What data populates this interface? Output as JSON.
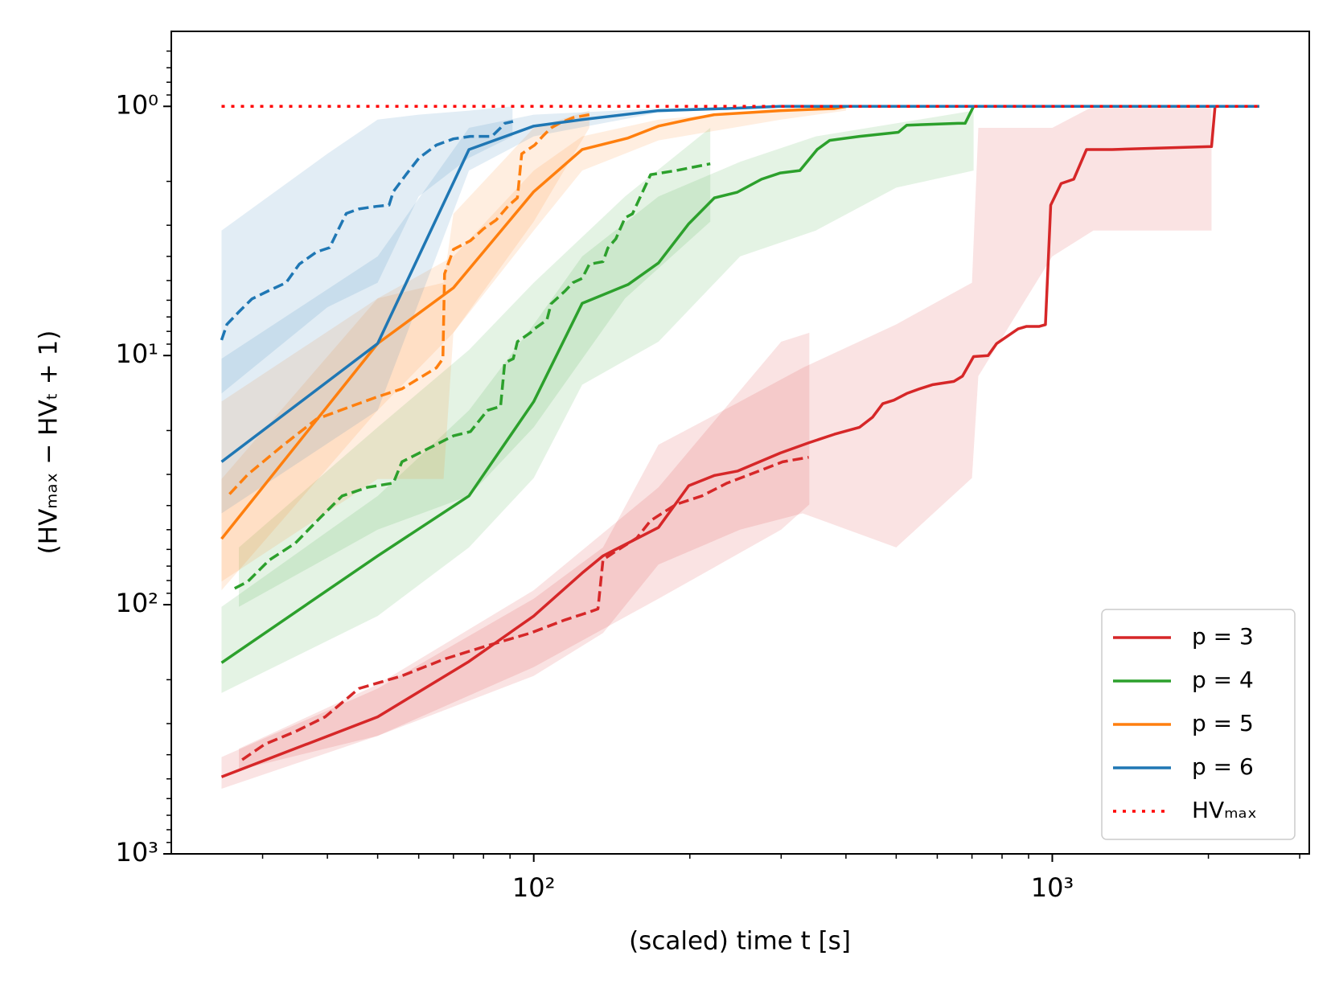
{
  "chart_data": {
    "type": "line",
    "xlabel": "(scaled) time t [s]",
    "ylabel": "(HVₘₐₓ − HVₜ + 1)",
    "xscale": "log",
    "yscale": "log",
    "invert_y": true,
    "xlim": [
      20,
      3130
    ],
    "ylim": [
      0.5,
      1000
    ],
    "xticks": [
      {
        "value": 100,
        "label": "10²"
      },
      {
        "value": 1000,
        "label": "10³"
      }
    ],
    "yticks": [
      {
        "value": 1,
        "label": "10⁰"
      },
      {
        "value": 10,
        "label": "10¹"
      },
      {
        "value": 100,
        "label": "10²"
      },
      {
        "value": 1000,
        "label": "10³"
      }
    ],
    "legend": "lower right",
    "series": [
      {
        "name": "p = 3",
        "color": "#d62728",
        "x": [
          25,
          50,
          75,
          100,
          124,
          136,
          174,
          199,
          223,
          247,
          299,
          339,
          380,
          425,
          450,
          471,
          495,
          524,
          555,
          587,
          646,
          671,
          705,
          752,
          781,
          859,
          892,
          944,
          970,
          993,
          1040,
          1100,
          1164,
          1305,
          2028,
          2060,
          2506
        ],
        "values": [
          491,
          282,
          169,
          111,
          74.6,
          63.7,
          49,
          33.3,
          30.3,
          29.1,
          24.6,
          22.4,
          20.7,
          19.4,
          17.7,
          15.6,
          15.1,
          14.2,
          13.6,
          13.1,
          12.7,
          12.1,
          10.1,
          10,
          8.95,
          7.82,
          7.64,
          7.64,
          7.52,
          2.49,
          2.04,
          1.96,
          1.49,
          1.49,
          1.45,
          1,
          1
        ],
        "band": {
          "x": [
            25,
            50,
            100,
            136,
            174,
            250,
            330,
            500,
            700,
            720,
            1000,
            1200,
            2028
          ],
          "min": [
            409,
            217,
            94.6,
            58.9,
            22.8,
            15.3,
            11.2,
            7.5,
            5.1,
            1.22,
            1.22,
            1,
            1
          ],
          "max": [
            548,
            336,
            193,
            130,
            69,
            50,
            43,
            58.9,
            31,
            12.1,
            4,
            3.15,
            3.15
          ]
        }
      },
      {
        "color": "#d62728",
        "dash": true,
        "x": [
          27.4,
          30.3,
          34.7,
          39.6,
          46,
          55.7,
          67.4,
          81.4,
          98.5,
          115,
          128,
          133,
          136,
          144,
          158,
          168,
          188,
          211,
          236,
          275,
          302,
          339
        ],
        "values": [
          419,
          363,
          323,
          282,
          217,
          193,
          165,
          146,
          130,
          115,
          107,
          104,
          66,
          61,
          54,
          46,
          39.6,
          36.6,
          32.5,
          28.8,
          26.7,
          25.6
        ],
        "band": {
          "x": [
            27,
            50,
            100,
            174,
            300,
            340
          ],
          "min": [
            378,
            209,
            87.5,
            33.8,
            8.8,
            8.1
          ],
          "max": [
            460,
            336,
            178,
            94.6,
            50,
            39.6
          ]
        }
      },
      {
        "name": "p = 4",
        "color": "#2ca02c",
        "x": [
          25,
          50,
          75,
          100,
          124,
          152,
          174,
          199,
          223,
          247,
          275,
          299,
          326,
          352,
          372,
          425,
          505,
          524,
          658,
          679,
          705,
          2506
        ],
        "values": [
          171,
          63.7,
          36.6,
          15.3,
          6.17,
          5.19,
          4.25,
          2.96,
          2.33,
          2.21,
          1.96,
          1.85,
          1.81,
          1.49,
          1.37,
          1.32,
          1.27,
          1.19,
          1.17,
          1.17,
          1,
          1
        ],
        "band": {
          "x": [
            25,
            50,
            75,
            100,
            124,
            174,
            250,
            350,
            500,
            705
          ],
          "min": [
            102,
            36.6,
            16.6,
            7.5,
            4,
            2.3,
            1.67,
            1.32,
            1.17,
            1.04
          ],
          "max": [
            226,
            111,
            58.9,
            31,
            13.1,
            8.8,
            4,
            3.15,
            2.12,
            1.81
          ]
        }
      },
      {
        "color": "#2ca02c",
        "dash": true,
        "x": [
          26.5,
          28.1,
          30.9,
          34.7,
          38.8,
          42.7,
          47.8,
          53.6,
          55.7,
          62.4,
          70,
          75.5,
          81.4,
          86.3,
          87.9,
          91.3,
          93,
          98.5,
          100.4,
          106,
          108,
          115,
          119,
          124,
          128,
          136,
          139,
          144,
          150,
          155,
          168,
          188,
          219
        ],
        "values": [
          86,
          80.7,
          66.2,
          56.6,
          44.6,
          36.6,
          33.8,
          32.5,
          26.7,
          23.7,
          21,
          20.2,
          16.6,
          16,
          10.7,
          10.3,
          8.8,
          8.1,
          7.8,
          7.2,
          6.2,
          5.5,
          5.1,
          4.9,
          4.3,
          4.2,
          3.7,
          3.4,
          2.8,
          2.7,
          1.88,
          1.81,
          1.7
        ],
        "band": {
          "x": [
            27,
            50,
            75,
            100,
            150,
            219
          ],
          "min": [
            58.9,
            19.4,
            9.5,
            5.1,
            2.3,
            1.22
          ],
          "max": [
            102,
            50,
            36.6,
            19.4,
            5.9,
            2.9
          ]
        }
      },
      {
        "name": "p = 5",
        "color": "#ff7f0e",
        "x": [
          25,
          50,
          70,
          100,
          124,
          152,
          174,
          199,
          223,
          299,
          380,
          402,
          2506
        ],
        "values": [
          54.4,
          8.95,
          5.35,
          2.2,
          1.49,
          1.34,
          1.2,
          1.13,
          1.08,
          1.04,
          1.02,
          1,
          1
        ],
        "band": {
          "x": [
            25,
            50,
            70,
            100,
            124,
            174,
            300,
            400
          ],
          "min": [
            31.3,
            5.9,
            4,
            1.81,
            1.32,
            1.13,
            1.02,
            1
          ],
          "max": [
            87.5,
            16.6,
            8.1,
            3.15,
            1.81,
            1.37,
            1.13,
            1.04
          ]
        }
      },
      {
        "color": "#ff7f0e",
        "dash": true,
        "x": [
          25.9,
          28.1,
          32.7,
          38.1,
          44.4,
          49.7,
          55.7,
          64.9,
          66.8,
          67.3,
          70,
          75.5,
          80,
          84.6,
          89.6,
          93,
          94.8,
          100.4,
          104,
          108,
          112,
          119,
          128
        ],
        "values": [
          36,
          30,
          23.1,
          18,
          16,
          14.7,
          13.6,
          11.2,
          10.3,
          4.7,
          3.75,
          3.46,
          3.1,
          2.86,
          2.49,
          2.33,
          1.55,
          1.43,
          1.32,
          1.22,
          1.17,
          1.11,
          1.08
        ],
        "band": {
          "x": [
            25,
            50,
            67,
            70,
            100,
            128
          ],
          "min": [
            15.3,
            5.9,
            5.1,
            2.7,
            1.22,
            1.04
          ],
          "max": [
            80.7,
            31.3,
            31.3,
            8.1,
            2.9,
            1.22
          ]
        }
      },
      {
        "name": "p = 6",
        "color": "#1f77b4",
        "x": [
          25,
          50,
          75,
          100,
          124,
          174,
          236,
          299,
          2506
        ],
        "values": [
          26.7,
          8.95,
          1.49,
          1.2,
          1.13,
          1.04,
          1.02,
          1,
          1
        ],
        "band": {
          "x": [
            25,
            50,
            75,
            100,
            174,
            300
          ],
          "min": [
            10.3,
            4,
            1.22,
            1.08,
            1.02,
            1
          ],
          "max": [
            43,
            16.6,
            1.81,
            1.32,
            1.06,
            1.01
          ]
        }
      },
      {
        "color": "#1f77b4",
        "dash": true,
        "x": [
          25,
          25.6,
          27,
          28.6,
          30.9,
          33.3,
          35.3,
          38.1,
          40.4,
          41.9,
          43.5,
          46,
          49.7,
          52.6,
          53.6,
          56.7,
          60.1,
          64.9,
          70,
          75.5,
          83,
          86.3,
          87.9,
          91.2
        ],
        "values": [
          8.67,
          7.5,
          6.68,
          5.93,
          5.48,
          5.1,
          4.3,
          3.84,
          3.69,
          3.15,
          2.69,
          2.58,
          2.52,
          2.49,
          2.2,
          1.88,
          1.61,
          1.43,
          1.35,
          1.32,
          1.32,
          1.22,
          1.17,
          1.15
        ],
        "band": {
          "x": [
            25,
            40,
            50,
            60,
            75,
            91
          ],
          "min": [
            3.15,
            1.55,
            1.13,
            1.08,
            1.04,
            1
          ],
          "max": [
            14.2,
            6.4,
            5.1,
            2.3,
            1.61,
            1.32
          ]
        }
      },
      {
        "name": "HVₘₐₓ",
        "color": "#ff0000",
        "dotted": true,
        "x": [
          25,
          2506
        ],
        "values": [
          1,
          1
        ]
      }
    ]
  }
}
